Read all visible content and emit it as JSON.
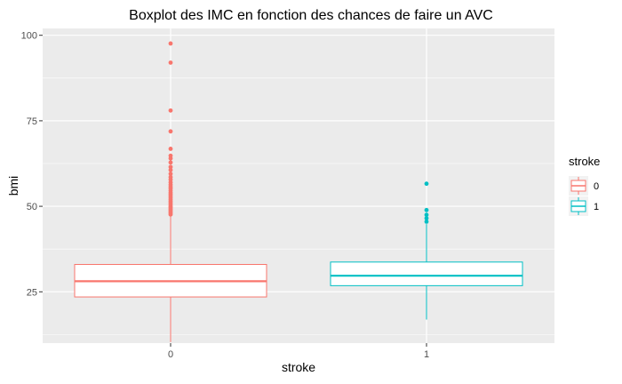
{
  "chart_data": {
    "type": "boxplot",
    "title": "Boxplot des IMC en fonction des chances de faire un AVC",
    "xlabel": "stroke",
    "ylabel": "bmi",
    "ylim": [
      10,
      102
    ],
    "yticks": [
      25,
      50,
      75,
      100
    ],
    "categories": [
      "0",
      "1"
    ],
    "grid": true,
    "legend": {
      "title": "stroke",
      "position": "right",
      "entries": [
        {
          "label": "0",
          "color": "#F8766D"
        },
        {
          "label": "1",
          "color": "#00BFC4"
        }
      ]
    },
    "series": [
      {
        "category": "0",
        "color": "#F8766D",
        "min": 10.3,
        "q1": 23.5,
        "median": 28.1,
        "q3": 33.0,
        "max": 47.2,
        "outliers": [
          47.6,
          48.0,
          48.4,
          48.8,
          49.2,
          49.6,
          50.0,
          50.5,
          51.0,
          51.5,
          52.0,
          52.5,
          53.0,
          53.5,
          54.0,
          54.6,
          55.2,
          55.7,
          56.3,
          57.0,
          57.8,
          58.5,
          59.5,
          60.6,
          61.5,
          62.8,
          64.0,
          64.8,
          66.8,
          71.9,
          78.0,
          92.0,
          97.6
        ]
      },
      {
        "category": "1",
        "color": "#00BFC4",
        "min": 16.9,
        "q1": 26.8,
        "median": 29.7,
        "q3": 33.7,
        "max": 44.8,
        "outliers": [
          45.5,
          46.5,
          47.5,
          48.9,
          56.6
        ]
      }
    ]
  }
}
